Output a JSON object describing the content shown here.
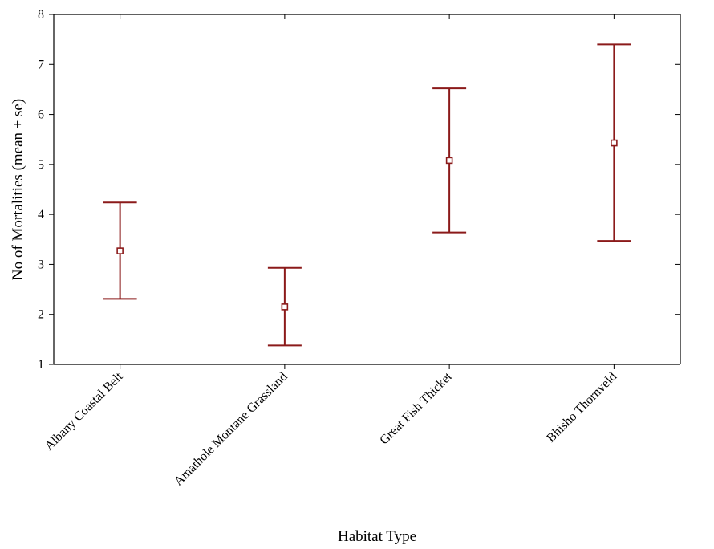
{
  "chart_data": {
    "type": "errorbar",
    "xlabel": "Habitat Type",
    "ylabel": "No of  Mortalities (mean ± se)",
    "ylim": [
      1,
      8
    ],
    "yticks": [
      1,
      2,
      3,
      4,
      5,
      6,
      7,
      8
    ],
    "categories": [
      "Albany Coastal Belt",
      "Amathole Montane Grassland",
      "Great Fish Thicket",
      "Bhisho Thornveld"
    ],
    "series": [
      {
        "mean": [
          3.27,
          2.15,
          5.08,
          5.43
        ],
        "lower": [
          2.31,
          1.38,
          3.64,
          3.47
        ],
        "upper": [
          4.24,
          2.93,
          6.52,
          7.4
        ]
      }
    ],
    "grid": false,
    "legend": "none",
    "color": "#8b1a1a"
  }
}
